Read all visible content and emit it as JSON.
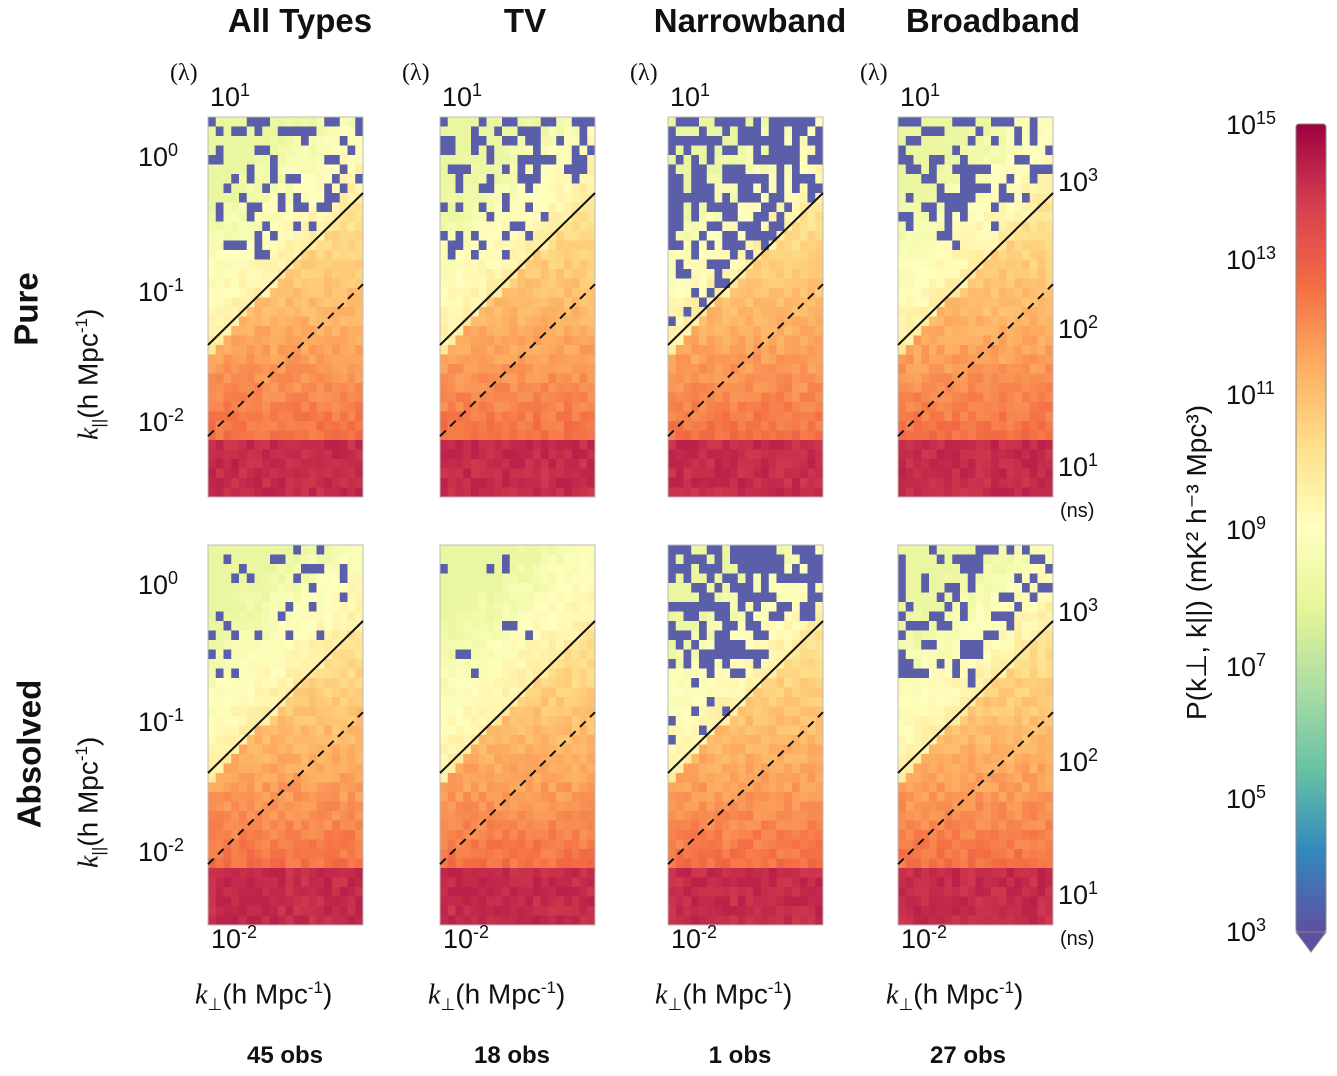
{
  "columns": [
    {
      "title": "All Types",
      "obs": "45 obs"
    },
    {
      "title": "TV",
      "obs": "18 obs"
    },
    {
      "title": "Narrowband",
      "obs": "1 obs"
    },
    {
      "title": "Broadband",
      "obs": "27 obs"
    }
  ],
  "rows": [
    {
      "title": "Pure"
    },
    {
      "title": "Absolved"
    }
  ],
  "axes": {
    "top_unit": "(λ)",
    "top_tick": "10",
    "top_tick_exp": "1",
    "y_ticks": [
      {
        "base": "10",
        "exp": "0"
      },
      {
        "base": "10",
        "exp": "-1"
      },
      {
        "base": "10",
        "exp": "-2"
      }
    ],
    "y_label_sym": "k",
    "y_label_sub": "||",
    "y_label_unit": "(h Mpc",
    "y_label_unit_exp": "-1",
    "y_label_close": ")",
    "right_ticks": [
      {
        "base": "10",
        "exp": "3"
      },
      {
        "base": "10",
        "exp": "2"
      },
      {
        "base": "10",
        "exp": "1"
      }
    ],
    "right_unit": "(ns)",
    "x_tick": "10",
    "x_tick_exp": "-2",
    "x_label_sym": "k",
    "x_label_sub": "⊥",
    "x_label_unit": "(h Mpc",
    "x_label_unit_exp": "-1",
    "x_label_close": ")"
  },
  "colorbar": {
    "ticks": [
      {
        "base": "10",
        "exp": "15"
      },
      {
        "base": "10",
        "exp": "13"
      },
      {
        "base": "10",
        "exp": "11"
      },
      {
        "base": "10",
        "exp": "9"
      },
      {
        "base": "10",
        "exp": "7"
      },
      {
        "base": "10",
        "exp": "5"
      },
      {
        "base": "10",
        "exp": "3"
      }
    ],
    "label": "P(k⊥, k||)   (mK² h⁻³ Mpc³)",
    "colors": [
      "#9e0142",
      "#d53e4f",
      "#f46d43",
      "#fdae61",
      "#fee08b",
      "#ffffbf",
      "#e6f598",
      "#abdda4",
      "#66c2a5",
      "#3288bd",
      "#5e4fa2"
    ]
  },
  "chart_data": {
    "type": "heatmap",
    "title": "",
    "xlabel": "k⊥ (h Mpc-1)",
    "ylabel": "k|| (h Mpc-1)",
    "x_scale": "log",
    "y_scale": "log",
    "ylim": [
      0.003,
      2.0
    ],
    "zlim": [
      1000.0,
      1000000000000000.0
    ],
    "z_scale": "log",
    "z_label": "P(k⊥, k||) (mK2 h-3 Mpc3)",
    "top_axis": "baseline (λ)",
    "right_axis": "delay (ns)",
    "masked_color": "#5b5ea8",
    "lines": [
      "horizon (solid)",
      "horizon offset (dashed)"
    ],
    "panels": [
      {
        "row": "Pure",
        "column": "All Types",
        "obs": 45
      },
      {
        "row": "Pure",
        "column": "TV",
        "obs": 18
      },
      {
        "row": "Pure",
        "column": "Narrowband",
        "obs": 1
      },
      {
        "row": "Pure",
        "column": "Broadband",
        "obs": 27
      },
      {
        "row": "Absolved",
        "column": "All Types",
        "obs": 45
      },
      {
        "row": "Absolved",
        "column": "TV",
        "obs": 18
      },
      {
        "row": "Absolved",
        "column": "Narrowband",
        "obs": 1
      },
      {
        "row": "Absolved",
        "column": "Broadband",
        "obs": 27
      }
    ]
  }
}
